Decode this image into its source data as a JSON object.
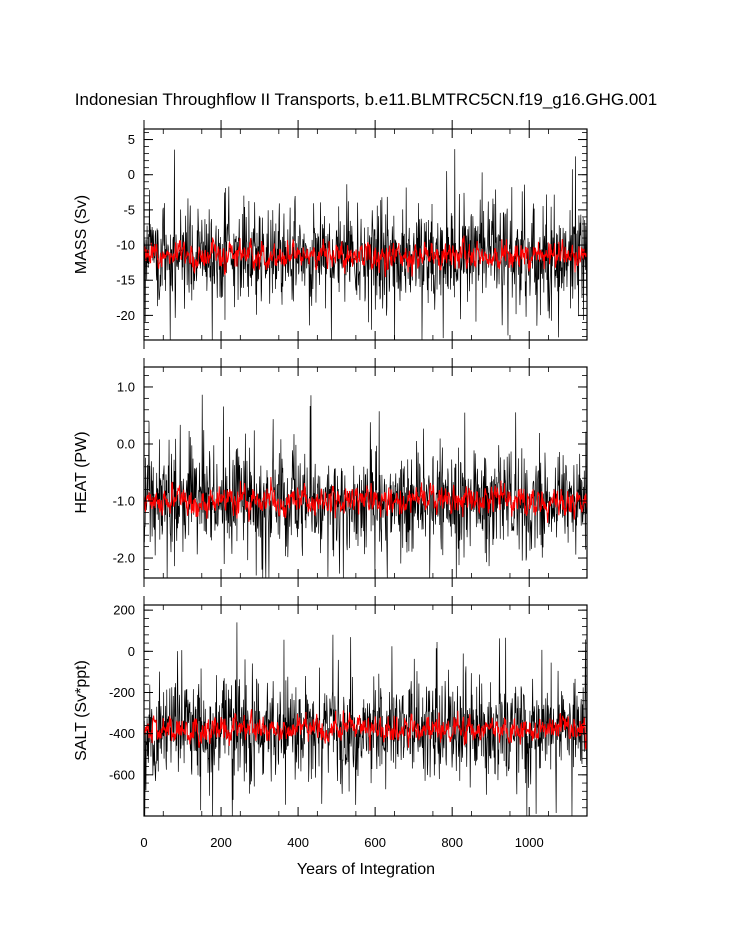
{
  "title": "Indonesian Throughflow II Transports, b.e11.BLMTRC5CN.f19_g16.GHG.001",
  "chart_data": {
    "type": "line",
    "xlabel": "Years of Integration",
    "xlim": [
      0,
      1150
    ],
    "xticks": [
      0,
      200,
      400,
      600,
      800,
      1000
    ],
    "panels": [
      {
        "ylabel": "MASS (Sv)",
        "ylim": [
          -23.5,
          6.5
        ],
        "yticks": [
          5,
          0,
          -5,
          -10,
          -15,
          -20
        ],
        "ytick_labels": [
          "5",
          "0",
          "-5",
          "-10",
          "-15",
          "-20"
        ],
        "series": [
          {
            "kind": "raw",
            "color": "#000000",
            "mean": -11.5,
            "spread": 4.0,
            "min": -23.5,
            "max": 5.8
          },
          {
            "kind": "smoothed",
            "color": "#ff0000",
            "mean": -11.5,
            "spread": 1.2
          }
        ]
      },
      {
        "ylabel": "HEAT (PW)",
        "ylim": [
          -2.35,
          1.35
        ],
        "yticks": [
          1.0,
          0.0,
          -1.0,
          -2.0
        ],
        "ytick_labels": [
          "1.0",
          "0.0",
          "-1.0",
          "-2.0"
        ],
        "series": [
          {
            "kind": "raw",
            "color": "#000000",
            "mean": -1.0,
            "spread": 0.5,
            "min": -2.35,
            "max": 1.2
          },
          {
            "kind": "smoothed",
            "color": "#ff0000",
            "mean": -1.0,
            "spread": 0.15
          }
        ]
      },
      {
        "ylabel": "SALT (Sv*ppt)",
        "ylim": [
          -800,
          225
        ],
        "yticks": [
          200,
          0,
          -200,
          -400,
          -600
        ],
        "ytick_labels": [
          "200",
          "0",
          "-200",
          "-400",
          "-600"
        ],
        "series": [
          {
            "kind": "raw",
            "color": "#000000",
            "mean": -380,
            "spread": 140,
            "min": -800,
            "max": 180
          },
          {
            "kind": "smoothed",
            "color": "#ff0000",
            "mean": -380,
            "spread": 40
          }
        ]
      }
    ]
  }
}
